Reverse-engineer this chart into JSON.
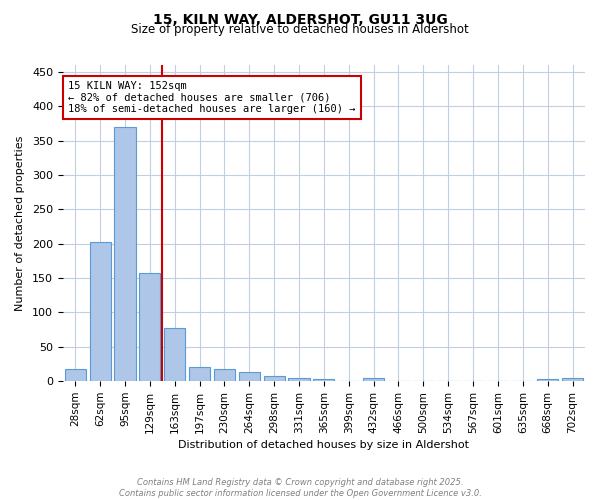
{
  "title": "15, KILN WAY, ALDERSHOT, GU11 3UG",
  "subtitle": "Size of property relative to detached houses in Aldershot",
  "xlabel": "Distribution of detached houses by size in Aldershot",
  "ylabel": "Number of detached properties",
  "footer_line1": "Contains HM Land Registry data © Crown copyright and database right 2025.",
  "footer_line2": "Contains public sector information licensed under the Open Government Licence v3.0.",
  "annotation_line1": "15 KILN WAY: 152sqm",
  "annotation_line2": "← 82% of detached houses are smaller (706)",
  "annotation_line3": "18% of semi-detached houses are larger (160) →",
  "bar_labels": [
    "28sqm",
    "62sqm",
    "95sqm",
    "129sqm",
    "163sqm",
    "197sqm",
    "230sqm",
    "264sqm",
    "298sqm",
    "331sqm",
    "365sqm",
    "399sqm",
    "432sqm",
    "466sqm",
    "500sqm",
    "534sqm",
    "567sqm",
    "601sqm",
    "635sqm",
    "668sqm",
    "702sqm"
  ],
  "bar_values": [
    18,
    202,
    370,
    158,
    78,
    21,
    18,
    13,
    7,
    4,
    3,
    0,
    4,
    0,
    0,
    0,
    0,
    0,
    0,
    3,
    4
  ],
  "bar_color": "#aec6e8",
  "bar_edge_color": "#5b9bd5",
  "background_color": "#ffffff",
  "grid_color": "#c0d0e0",
  "vline_color": "#cc0000",
  "annotation_box_color": "#cc0000",
  "ylim": [
    0,
    460
  ],
  "yticks": [
    0,
    50,
    100,
    150,
    200,
    250,
    300,
    350,
    400,
    450
  ]
}
